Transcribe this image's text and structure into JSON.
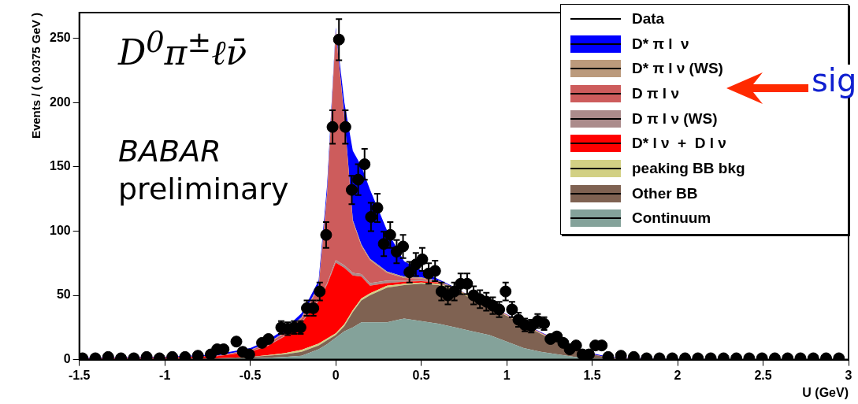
{
  "chart_data": {
    "type": "area",
    "stacked": true,
    "xlabel": "U (GeV)",
    "ylabel": "Events / ( 0.0375 GeV )",
    "xlim": [
      -1.5,
      3
    ],
    "xticks": [
      -1.5,
      -1,
      -0.5,
      0,
      0.5,
      1,
      1.5,
      2,
      2.5,
      3
    ],
    "ylim": [
      0,
      270
    ],
    "yticks": [
      0,
      50,
      100,
      150,
      200,
      250
    ],
    "grid": false,
    "legend": "top right",
    "annotations": [
      "D$^{0}$π$^{±}$ℓν̄",
      "BABAR",
      "preliminary",
      "sig"
    ],
    "x": [
      -1.5,
      -1.0,
      -0.7,
      -0.5,
      -0.4,
      -0.3,
      -0.2,
      -0.1,
      -0.05,
      0,
      0.05,
      0.1,
      0.15,
      0.2,
      0.3,
      0.4,
      0.5,
      0.6,
      0.7,
      0.8,
      0.9,
      1.0,
      1.1,
      1.2,
      1.3,
      1.4,
      1.5,
      1.6,
      2.0,
      3.0
    ],
    "series": [
      {
        "name": "Data",
        "type": "scatter",
        "color": "#000000",
        "marker": "circle",
        "x": [
          -1.48125,
          -1.40625,
          -1.33125,
          -1.25625,
          -1.18125,
          -1.10625,
          -1.03125,
          -0.95625,
          -0.88125,
          -0.80625,
          -0.73125,
          -0.69375,
          -0.65625,
          -0.58125,
          -0.54375,
          -0.50625,
          -0.43125,
          -0.39375,
          -0.31875,
          -0.28125,
          -0.24375,
          -0.20625,
          -0.16875,
          -0.13125,
          -0.09375,
          -0.05625,
          -0.01875,
          0.01875,
          0.05625,
          0.09375,
          0.13125,
          0.16875,
          0.20625,
          0.24375,
          0.28125,
          0.31875,
          0.35625,
          0.39375,
          0.43125,
          0.46875,
          0.50625,
          0.54375,
          0.58125,
          0.61875,
          0.65625,
          0.69375,
          0.73125,
          0.76875,
          0.80625,
          0.84375,
          0.88125,
          0.91875,
          0.95625,
          0.99375,
          1.03125,
          1.06875,
          1.10625,
          1.14375,
          1.18125,
          1.21875,
          1.25625,
          1.29375,
          1.33125,
          1.36875,
          1.40625,
          1.44375,
          1.48125,
          1.51875,
          1.55625,
          1.59375,
          1.66875,
          1.74375,
          1.81875,
          1.89375,
          1.96875,
          2.04375,
          2.11875,
          2.19375,
          2.26875,
          2.34375,
          2.41875,
          2.49375,
          2.56875,
          2.64375,
          2.71875,
          2.79375,
          2.86875,
          2.94375
        ],
        "values": [
          1,
          1,
          2,
          1,
          1,
          2,
          1,
          2,
          2,
          3,
          4,
          8,
          8,
          14,
          6,
          4,
          13,
          16,
          25,
          24,
          25,
          25,
          40,
          40,
          53,
          97,
          181,
          249,
          181,
          132,
          140,
          152,
          111,
          118,
          90,
          97,
          84,
          88,
          68,
          74,
          78,
          67,
          69,
          53,
          50,
          53,
          59,
          59,
          50,
          47,
          45,
          42,
          39,
          53,
          39,
          31,
          27,
          26,
          30,
          28,
          16,
          18,
          13,
          8,
          11,
          4,
          4,
          11,
          11,
          2,
          3,
          2,
          1,
          1,
          1,
          1,
          1,
          1,
          1,
          1,
          1,
          1,
          1,
          1,
          1,
          1,
          1,
          1
        ],
        "errors": [
          null,
          null,
          null,
          null,
          null,
          null,
          null,
          null,
          null,
          null,
          null,
          null,
          null,
          null,
          null,
          null,
          null,
          null,
          5,
          5,
          5,
          5,
          6,
          6,
          7,
          10,
          13,
          16,
          13,
          11,
          12,
          12,
          11,
          11,
          9.5,
          10,
          9,
          9,
          8,
          9,
          9,
          8,
          8,
          7,
          7,
          7,
          8,
          8,
          7,
          7,
          7,
          6.5,
          6,
          7,
          6,
          5.5,
          5,
          5,
          5.5,
          5,
          null,
          null,
          null,
          null,
          null,
          null,
          null,
          null,
          null,
          null,
          null,
          null,
          null,
          null,
          null,
          null,
          null,
          null,
          null,
          null,
          null,
          null,
          null,
          null,
          null,
          null,
          null,
          null
        ]
      },
      {
        "name": "Continuum",
        "color": "#84a29a",
        "values": [
          0.3,
          0.4,
          0.5,
          1,
          1.5,
          2,
          3,
          8,
          12,
          17,
          22,
          25,
          29,
          29,
          29,
          32,
          30,
          28,
          25,
          22,
          19,
          14,
          9,
          6,
          4,
          2,
          1,
          0.5,
          0.2,
          0.1
        ]
      },
      {
        "name": "Other BB",
        "color": "#7f6252",
        "values": [
          0.2,
          0.3,
          0.5,
          1,
          1.5,
          2,
          3,
          3,
          3,
          2,
          4,
          12,
          17,
          21,
          27,
          26,
          29,
          30,
          29,
          25,
          21,
          20,
          18,
          14,
          10,
          6,
          3,
          1,
          0.2,
          0.1
        ]
      },
      {
        "name": "peaking BB bkg",
        "color": "#d2d084",
        "values": [
          0,
          0,
          0,
          0,
          0.5,
          1,
          1.5,
          1.5,
          1.5,
          1.5,
          1.5,
          1.5,
          1.5,
          1.5,
          1.5,
          1,
          1,
          1,
          1,
          1,
          0.5,
          0.5,
          0.5,
          0.5,
          0.5,
          0,
          0,
          0,
          0,
          0
        ]
      },
      {
        "name": "D* l ν  +  D l ν",
        "color": "#ff0000",
        "values": [
          0.5,
          0.8,
          1.5,
          4,
          7,
          13,
          21,
          33,
          42,
          55,
          44,
          27,
          17,
          6,
          2,
          1.5,
          1,
          1,
          null,
          null,
          null,
          0.3,
          0.3,
          0.3,
          0.3,
          null,
          0.2,
          0.1,
          0,
          0
        ]
      },
      {
        "name": "D π l ν (WS)",
        "color": "#ab8b8b",
        "values": [
          0,
          0,
          0,
          0.3,
          0.3,
          0.5,
          0.5,
          1,
          1,
          2,
          2,
          2,
          2,
          2,
          2,
          1,
          1,
          0.5,
          0.3,
          0.2,
          0.1,
          0.1,
          0.1,
          0,
          0,
          null,
          0,
          0,
          0,
          0
        ]
      },
      {
        "name": "D π l ν",
        "color": "#cd5c5c",
        "values": [
          0,
          0.2,
          0.5,
          1,
          1.5,
          2,
          3,
          10,
          70,
          178,
          115,
          40,
          22,
          18,
          6,
          2,
          1,
          0.5,
          0.2,
          0.1,
          0,
          0,
          0,
          0,
          0,
          null,
          0,
          0,
          0,
          0
        ]
      },
      {
        "name": "D* π l ν (WS)",
        "color": "#bb9a7c",
        "values": [
          0,
          0,
          0,
          0.2,
          0.5,
          0.7,
          1,
          1,
          1,
          1,
          1,
          1,
          1,
          1,
          1,
          1,
          1,
          0.5,
          0.2,
          0.1,
          0.1,
          0.1,
          0.1,
          0.1,
          0,
          null,
          0,
          0,
          0,
          0
        ]
      },
      {
        "name": "D* π l  ν",
        "color": "#0000ff",
        "values": [
          0.5,
          0.5,
          1,
          1.5,
          2,
          2.5,
          3,
          4,
          6,
          2,
          11,
          54,
          61,
          54,
          32,
          12,
          5.5,
          1,
          0.3,
          0,
          0.2,
          0.3,
          0.3,
          0.4,
          0.5,
          null,
          0.8,
          0.4,
          0.1,
          0
        ]
      }
    ]
  }
}
